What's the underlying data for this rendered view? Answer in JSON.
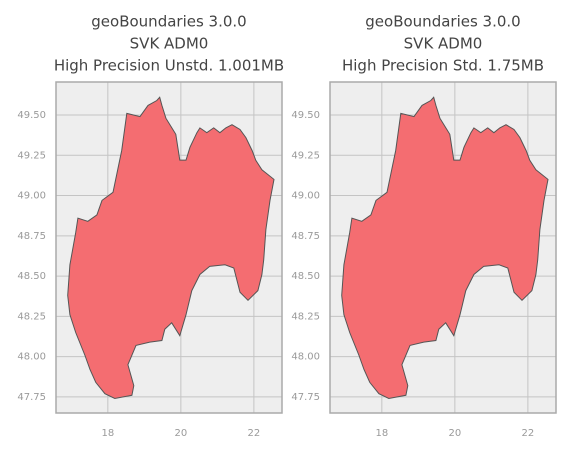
{
  "chart_data": [
    {
      "type": "map",
      "title": [
        "geoBoundaries 3.0.0",
        "SVK ADM0",
        "High Precision Unstd. 1.001MB"
      ],
      "color": "#f46d71",
      "edge_color": "#555555",
      "grid": true,
      "xlim": [
        16.58,
        22.77
      ],
      "ylim": [
        47.65,
        49.705
      ],
      "xticks": [
        18,
        20,
        22
      ],
      "yticks": [
        47.75,
        {
          "value": 48.0,
          "label": "48.00"
        },
        48.25,
        {
          "value": 48.5,
          "label": "48.50"
        },
        48.75,
        {
          "value": 49.0,
          "label": "49.00"
        },
        49.25,
        {
          "value": 49.5,
          "label": "49.50"
        }
      ],
      "x": [
        16.9,
        16.96,
        17.12,
        17.18,
        17.45,
        17.7,
        17.84,
        18.14,
        18.38,
        18.52,
        18.88,
        19.1,
        19.34,
        19.42,
        19.48,
        19.59,
        19.86,
        19.97,
        20.14,
        20.25,
        20.44,
        20.52,
        20.71,
        20.9,
        21.07,
        21.23,
        21.4,
        21.62,
        21.78,
        21.95,
        22.05,
        22.22,
        22.55,
        22.44,
        22.33,
        22.27,
        22.22,
        22.11,
        21.84,
        21.62,
        21.45,
        21.21,
        20.79,
        20.52,
        20.3,
        20.14,
        19.97,
        19.75,
        19.56,
        19.48,
        19.15,
        18.77,
        18.55,
        18.71,
        18.66,
        18.19,
        17.92,
        17.67,
        17.51,
        17.37,
        17.12,
        16.96
      ],
      "y": [
        48.38,
        48.57,
        48.77,
        48.86,
        48.84,
        48.88,
        48.97,
        49.02,
        49.28,
        49.51,
        49.49,
        49.56,
        49.59,
        49.61,
        49.56,
        49.48,
        49.38,
        49.22,
        49.22,
        49.3,
        49.39,
        49.42,
        49.39,
        49.42,
        49.39,
        49.42,
        49.44,
        49.41,
        49.36,
        49.28,
        49.22,
        49.16,
        49.1,
        48.97,
        48.79,
        48.6,
        48.51,
        48.41,
        48.35,
        48.4,
        48.55,
        48.57,
        48.56,
        48.51,
        48.41,
        48.26,
        48.13,
        48.21,
        48.17,
        48.1,
        48.09,
        48.07,
        47.95,
        47.82,
        47.76,
        47.74,
        47.77,
        47.84,
        47.92,
        48.01,
        48.15,
        48.26
      ]
    },
    {
      "type": "map",
      "title": [
        "geoBoundaries 3.0.0",
        "SVK ADM0",
        "High Precision Std. 1.75MB"
      ],
      "color": "#f46d71",
      "edge_color": "#555555",
      "grid": true,
      "xlim": [
        16.58,
        22.77
      ],
      "ylim": [
        47.65,
        49.705
      ],
      "xticks": [
        18,
        20,
        22
      ],
      "yticks": [
        47.75,
        {
          "value": 48.0,
          "label": "48.00"
        },
        48.25,
        {
          "value": 48.5,
          "label": "48.50"
        },
        48.75,
        {
          "value": 49.0,
          "label": "49.00"
        },
        49.25,
        {
          "value": 49.5,
          "label": "49.50"
        }
      ],
      "x": [
        16.9,
        16.96,
        17.12,
        17.18,
        17.45,
        17.7,
        17.84,
        18.14,
        18.38,
        18.52,
        18.88,
        19.1,
        19.34,
        19.42,
        19.48,
        19.59,
        19.86,
        19.97,
        20.14,
        20.25,
        20.44,
        20.52,
        20.71,
        20.9,
        21.07,
        21.23,
        21.4,
        21.62,
        21.78,
        21.95,
        22.05,
        22.22,
        22.55,
        22.44,
        22.33,
        22.27,
        22.22,
        22.11,
        21.84,
        21.62,
        21.45,
        21.21,
        20.79,
        20.52,
        20.3,
        20.14,
        19.97,
        19.75,
        19.56,
        19.48,
        19.15,
        18.77,
        18.55,
        18.71,
        18.66,
        18.19,
        17.92,
        17.67,
        17.51,
        17.37,
        17.12,
        16.96
      ],
      "y": [
        48.38,
        48.57,
        48.77,
        48.86,
        48.84,
        48.88,
        48.97,
        49.02,
        49.28,
        49.51,
        49.49,
        49.56,
        49.59,
        49.61,
        49.56,
        49.48,
        49.38,
        49.22,
        49.22,
        49.3,
        49.39,
        49.42,
        49.39,
        49.42,
        49.39,
        49.42,
        49.44,
        49.41,
        49.36,
        49.28,
        49.22,
        49.16,
        49.1,
        48.97,
        48.79,
        48.6,
        48.51,
        48.41,
        48.35,
        48.4,
        48.55,
        48.57,
        48.56,
        48.51,
        48.41,
        48.26,
        48.13,
        48.21,
        48.17,
        48.1,
        48.09,
        48.07,
        47.95,
        47.82,
        47.76,
        47.74,
        47.77,
        47.84,
        47.92,
        48.01,
        48.15,
        48.26
      ]
    }
  ]
}
